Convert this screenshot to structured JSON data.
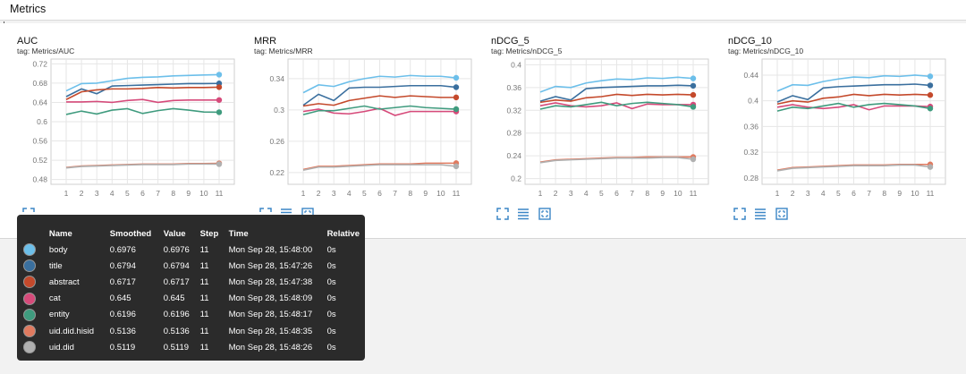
{
  "header": {
    "title": "Metrics"
  },
  "charts": [
    {
      "title": "AUC",
      "tag": "tag: Metrics/AUC",
      "chart_data": {
        "type": "line",
        "x": [
          1,
          2,
          3,
          4,
          5,
          6,
          7,
          8,
          9,
          10,
          11
        ],
        "ylim": [
          0.47,
          0.73
        ],
        "yticks": [
          0.48,
          0.52,
          0.56,
          0.6,
          0.64,
          0.68,
          0.72
        ],
        "yticklabels": [
          "0.48",
          "0.52",
          "0.56",
          "0.6",
          "0.64",
          "0.68",
          "0.72"
        ],
        "grid": true,
        "series": [
          {
            "name": "body",
            "color": "#6cbfea",
            "values": [
              0.664,
              0.679,
              0.68,
              0.685,
              0.69,
              0.692,
              0.693,
              0.695,
              0.696,
              0.697,
              0.6976
            ]
          },
          {
            "name": "title",
            "color": "#3a6f9e",
            "values": [
              0.652,
              0.668,
              0.658,
              0.674,
              0.675,
              0.676,
              0.677,
              0.678,
              0.679,
              0.679,
              0.6794
            ]
          },
          {
            "name": "abstract",
            "color": "#c4492b",
            "values": [
              0.646,
              0.662,
              0.666,
              0.668,
              0.668,
              0.669,
              0.671,
              0.67,
              0.671,
              0.671,
              0.6717
            ]
          },
          {
            "name": "cat",
            "color": "#d64a7a",
            "values": [
              0.641,
              0.641,
              0.642,
              0.64,
              0.644,
              0.646,
              0.64,
              0.644,
              0.645,
              0.645,
              0.645
            ]
          },
          {
            "name": "entity",
            "color": "#3f9b7e",
            "values": [
              0.615,
              0.622,
              0.616,
              0.624,
              0.627,
              0.617,
              0.623,
              0.627,
              0.624,
              0.62,
              0.6196
            ]
          },
          {
            "name": "uid.did.hisid",
            "color": "#e07a5f",
            "values": [
              0.505,
              0.508,
              0.509,
              0.51,
              0.511,
              0.512,
              0.512,
              0.512,
              0.513,
              0.513,
              0.5136
            ]
          },
          {
            "name": "uid.did",
            "color": "#b0b0b0",
            "values": [
              0.504,
              0.507,
              0.508,
              0.509,
              0.51,
              0.511,
              0.511,
              0.511,
              0.512,
              0.512,
              0.5119
            ]
          }
        ]
      }
    },
    {
      "title": "MRR",
      "tag": "tag: Metrics/MRR",
      "chart_data": {
        "type": "line",
        "x": [
          1,
          2,
          3,
          4,
          5,
          6,
          7,
          8,
          9,
          10,
          11
        ],
        "ylim": [
          0.205,
          0.365
        ],
        "yticks": [
          0.22,
          0.26,
          0.3,
          0.34
        ],
        "yticklabels": [
          "0.22",
          "0.26",
          "0.3",
          "0.34"
        ],
        "grid": true,
        "series": [
          {
            "name": "body",
            "color": "#6cbfea",
            "values": [
              0.322,
              0.332,
              0.33,
              0.336,
              0.34,
              0.343,
              0.342,
              0.344,
              0.343,
              0.343,
              0.341
            ]
          },
          {
            "name": "title",
            "color": "#3a6f9e",
            "values": [
              0.306,
              0.32,
              0.312,
              0.328,
              0.329,
              0.329,
              0.33,
              0.331,
              0.331,
              0.331,
              0.329
            ]
          },
          {
            "name": "abstract",
            "color": "#c4492b",
            "values": [
              0.305,
              0.308,
              0.306,
              0.312,
              0.315,
              0.318,
              0.316,
              0.318,
              0.317,
              0.316,
              0.316
            ]
          },
          {
            "name": "cat",
            "color": "#d64a7a",
            "values": [
              0.298,
              0.301,
              0.296,
              0.295,
              0.298,
              0.302,
              0.293,
              0.298,
              0.298,
              0.298,
              0.298
            ]
          },
          {
            "name": "entity",
            "color": "#3f9b7e",
            "values": [
              0.294,
              0.299,
              0.299,
              0.302,
              0.305,
              0.301,
              0.303,
              0.305,
              0.303,
              0.302,
              0.301
            ]
          },
          {
            "name": "uid.did.hisid",
            "color": "#e07a5f",
            "values": [
              0.224,
              0.228,
              0.228,
              0.229,
              0.23,
              0.231,
              0.231,
              0.231,
              0.232,
              0.232,
              0.232
            ]
          },
          {
            "name": "uid.did",
            "color": "#b0b0b0",
            "values": [
              0.223,
              0.227,
              0.227,
              0.228,
              0.229,
              0.23,
              0.23,
              0.23,
              0.23,
              0.23,
              0.228
            ]
          }
        ]
      }
    },
    {
      "title": "nDCG_5",
      "tag": "tag: Metrics/nDCG_5",
      "chart_data": {
        "type": "line",
        "x": [
          1,
          2,
          3,
          4,
          5,
          6,
          7,
          8,
          9,
          10,
          11
        ],
        "ylim": [
          0.19,
          0.41
        ],
        "yticks": [
          0.2,
          0.24,
          0.28,
          0.32,
          0.36,
          0.4
        ],
        "yticklabels": [
          "0.2",
          "0.24",
          "0.28",
          "0.32",
          "0.36",
          "0.4"
        ],
        "grid": true,
        "series": [
          {
            "name": "body",
            "color": "#6cbfea",
            "values": [
              0.352,
              0.362,
              0.36,
              0.368,
              0.372,
              0.375,
              0.374,
              0.377,
              0.376,
              0.378,
              0.376
            ]
          },
          {
            "name": "title",
            "color": "#3a6f9e",
            "values": [
              0.336,
              0.344,
              0.338,
              0.358,
              0.36,
              0.361,
              0.362,
              0.363,
              0.363,
              0.364,
              0.363
            ]
          },
          {
            "name": "abstract",
            "color": "#c4492b",
            "values": [
              0.334,
              0.338,
              0.336,
              0.342,
              0.344,
              0.348,
              0.346,
              0.348,
              0.347,
              0.348,
              0.347
            ]
          },
          {
            "name": "cat",
            "color": "#d64a7a",
            "values": [
              0.328,
              0.333,
              0.328,
              0.326,
              0.328,
              0.333,
              0.323,
              0.331,
              0.33,
              0.33,
              0.33
            ]
          },
          {
            "name": "entity",
            "color": "#3f9b7e",
            "values": [
              0.322,
              0.328,
              0.326,
              0.33,
              0.334,
              0.328,
              0.332,
              0.334,
              0.332,
              0.33,
              0.326
            ]
          },
          {
            "name": "uid.did.hisid",
            "color": "#e07a5f",
            "values": [
              0.229,
              0.233,
              0.234,
              0.235,
              0.236,
              0.237,
              0.237,
              0.238,
              0.238,
              0.238,
              0.238
            ]
          },
          {
            "name": "uid.did",
            "color": "#b0b0b0",
            "values": [
              0.228,
              0.232,
              0.233,
              0.234,
              0.235,
              0.236,
              0.236,
              0.236,
              0.237,
              0.237,
              0.234
            ]
          }
        ]
      }
    },
    {
      "title": "nDCG_10",
      "tag": "tag: Metrics/nDCG_10",
      "chart_data": {
        "type": "line",
        "x": [
          1,
          2,
          3,
          4,
          5,
          6,
          7,
          8,
          9,
          10,
          11
        ],
        "ylim": [
          0.27,
          0.465
        ],
        "yticks": [
          0.28,
          0.32,
          0.36,
          0.4,
          0.44
        ],
        "yticklabels": [
          "0.28",
          "0.32",
          "0.36",
          "0.4",
          "0.44"
        ],
        "grid": true,
        "series": [
          {
            "name": "body",
            "color": "#6cbfea",
            "values": [
              0.415,
              0.425,
              0.424,
              0.43,
              0.434,
              0.437,
              0.436,
              0.439,
              0.438,
              0.44,
              0.438
            ]
          },
          {
            "name": "title",
            "color": "#3a6f9e",
            "values": [
              0.398,
              0.408,
              0.402,
              0.42,
              0.422,
              0.423,
              0.424,
              0.425,
              0.425,
              0.426,
              0.424
            ]
          },
          {
            "name": "abstract",
            "color": "#c4492b",
            "values": [
              0.395,
              0.4,
              0.398,
              0.404,
              0.406,
              0.41,
              0.408,
              0.41,
              0.409,
              0.41,
              0.409
            ]
          },
          {
            "name": "cat",
            "color": "#d64a7a",
            "values": [
              0.39,
              0.394,
              0.39,
              0.388,
              0.39,
              0.394,
              0.386,
              0.392,
              0.392,
              0.392,
              0.391
            ]
          },
          {
            "name": "entity",
            "color": "#3f9b7e",
            "values": [
              0.384,
              0.39,
              0.388,
              0.392,
              0.396,
              0.39,
              0.394,
              0.396,
              0.394,
              0.392,
              0.388
            ]
          },
          {
            "name": "uid.did.hisid",
            "color": "#e07a5f",
            "values": [
              0.292,
              0.296,
              0.297,
              0.298,
              0.299,
              0.3,
              0.3,
              0.3,
              0.301,
              0.301,
              0.301
            ]
          },
          {
            "name": "uid.did",
            "color": "#b0b0b0",
            "values": [
              0.291,
              0.295,
              0.296,
              0.297,
              0.298,
              0.299,
              0.299,
              0.299,
              0.3,
              0.3,
              0.297
            ]
          }
        ]
      }
    }
  ],
  "tooltip": {
    "headers": [
      "Name",
      "Smoothed",
      "Value",
      "Step",
      "Time",
      "Relative"
    ],
    "rows": [
      {
        "name": "body",
        "color": "#6cbfea",
        "smoothed": "0.6976",
        "value": "0.6976",
        "step": "11",
        "time": "Mon Sep 28, 15:48:00",
        "relative": "0s"
      },
      {
        "name": "title",
        "color": "#3a6f9e",
        "smoothed": "0.6794",
        "value": "0.6794",
        "step": "11",
        "time": "Mon Sep 28, 15:47:26",
        "relative": "0s"
      },
      {
        "name": "abstract",
        "color": "#c4492b",
        "smoothed": "0.6717",
        "value": "0.6717",
        "step": "11",
        "time": "Mon Sep 28, 15:47:38",
        "relative": "0s"
      },
      {
        "name": "cat",
        "color": "#d64a7a",
        "smoothed": "0.645",
        "value": "0.645",
        "step": "11",
        "time": "Mon Sep 28, 15:48:09",
        "relative": "0s"
      },
      {
        "name": "entity",
        "color": "#3f9b7e",
        "smoothed": "0.6196",
        "value": "0.6196",
        "step": "11",
        "time": "Mon Sep 28, 15:48:17",
        "relative": "0s"
      },
      {
        "name": "uid.did.hisid",
        "color": "#e07a5f",
        "smoothed": "0.5136",
        "value": "0.5136",
        "step": "11",
        "time": "Mon Sep 28, 15:48:35",
        "relative": "0s"
      },
      {
        "name": "uid.did",
        "color": "#b0b0b0",
        "smoothed": "0.5119",
        "value": "0.5119",
        "step": "11",
        "time": "Mon Sep 28, 15:48:26",
        "relative": "0s"
      }
    ]
  },
  "icons": [
    "expand-icon",
    "data-table-icon",
    "fit-domain-icon"
  ]
}
